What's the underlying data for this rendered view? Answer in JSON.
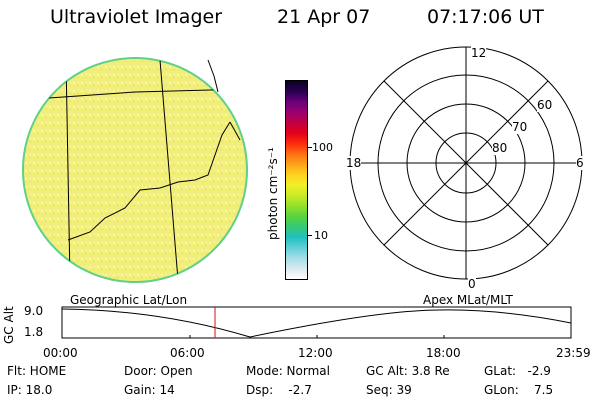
{
  "header": {
    "instrument": "Ultraviolet Imager",
    "date": "21 Apr 07",
    "time": "07:17:06 UT"
  },
  "colorbar": {
    "unit_label": "photon cm⁻²s⁻¹",
    "ticks": [
      "100",
      "10"
    ],
    "colors": [
      "#ffffff",
      "#d9eaf0",
      "#a6dde8",
      "#5fd0d8",
      "#20c0c0",
      "#35c878",
      "#59d43d",
      "#93e02b",
      "#c9eb25",
      "#f0f02a",
      "#ffd21f",
      "#ffa31a",
      "#ff6f12",
      "#ff2a0c",
      "#e2001a",
      "#c00044",
      "#9b0070",
      "#6a007a",
      "#2a004f",
      "#0a0024"
    ]
  },
  "geo_panel": {
    "caption": "Geographic Lat/Lon",
    "disk_fill": "#f2ee7a",
    "disk_edge": "#5fd08a"
  },
  "polar_panel": {
    "caption": "Apex MLat/MLT",
    "mlt_labels": {
      "top": "12",
      "left": "18",
      "right": "6",
      "bottom": "0"
    },
    "lat_labels": [
      "60",
      "70",
      "80"
    ]
  },
  "altitude_plot": {
    "ylabel": "GC Alt",
    "y_top": "9.0",
    "y_bottom": "1.8",
    "x_ticks": [
      "00:00",
      "06:00",
      "12:00",
      "18:00",
      "23:59"
    ],
    "current_marker_color": "#d01010"
  },
  "status": {
    "flt": "Flt: HOME",
    "ip": "IP: 18.0",
    "door": "Door: Open",
    "gain": "Gain: 14",
    "mode": "Mode: Normal",
    "dsp": "Dsp:    -2.7",
    "gc_alt": "GC Alt: 3.8 Re",
    "seq": "Seq: 39",
    "glat": "GLat:   -2.9",
    "glon": "GLon:    7.5"
  }
}
